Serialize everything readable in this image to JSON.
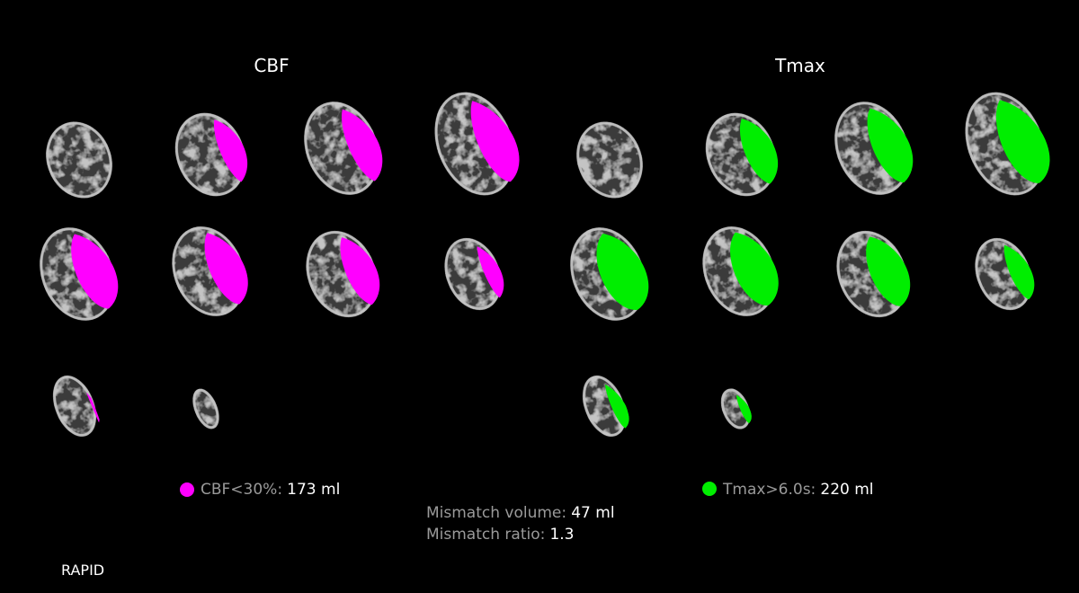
{
  "panels": [
    {
      "title": "CBF",
      "legend": {
        "label": "CBF<30%:",
        "value": "173 ml"
      }
    },
    {
      "title": "Tmax",
      "legend": {
        "label": "Tmax>6.0s:",
        "value": "220 ml"
      }
    }
  ],
  "mismatch": {
    "volume_label": "Mismatch volume:",
    "volume_value": "47 ml",
    "ratio_label": "Mismatch ratio:",
    "ratio_value": "1.3"
  },
  "footer": "RAPID"
}
